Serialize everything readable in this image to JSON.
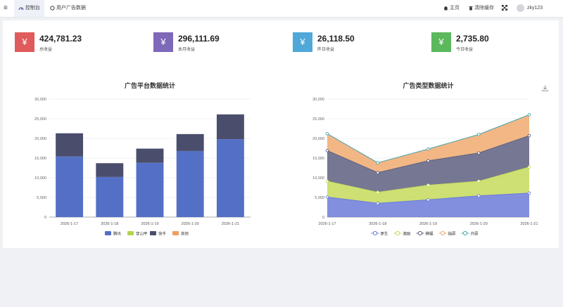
{
  "topbar": {
    "tabs": [
      {
        "icon": "dashboard-icon",
        "label": "控制台",
        "active": true
      },
      {
        "icon": "circle-icon",
        "label": "用户广告数据",
        "active": false
      }
    ],
    "right": {
      "home_label": "主页",
      "clear_cache_label": "清除缓存",
      "user_name": "zky123"
    }
  },
  "stats": [
    {
      "value": "424,781.23",
      "label": "总收益",
      "color": "#e05b5b",
      "icon": "¥"
    },
    {
      "value": "296,111.69",
      "label": "本月收益",
      "color": "#7e68b8",
      "icon": "¥"
    },
    {
      "value": "26,118.50",
      "label": "昨日收益",
      "color": "#4fa8d8",
      "icon": "¥"
    },
    {
      "value": "2,735.80",
      "label": "今日收益",
      "color": "#5cb85c",
      "icon": "¥"
    }
  ],
  "chart_data": [
    {
      "type": "bar",
      "stacked": true,
      "title": "广告平台数据统计",
      "categories": [
        "2026-1-17",
        "2026-1-18",
        "2026-1-19",
        "2026-1-20",
        "2026-1-21"
      ],
      "ylim": [
        0,
        30000
      ],
      "yticks": [
        "0",
        "5,000",
        "10,000",
        "15,000",
        "20,000",
        "25,000",
        "30,000"
      ],
      "legend_position": "bottom",
      "series": [
        {
          "name": "腾讯",
          "color": "#5470c6",
          "values": [
            15400,
            10200,
            13800,
            16800,
            19800
          ]
        },
        {
          "name": "穿山甲",
          "color": "#b5d24c",
          "values": [
            0,
            0,
            0,
            0,
            0
          ]
        },
        {
          "name": "快手",
          "color": "#4a4d6b",
          "values": [
            5900,
            3500,
            3600,
            4300,
            6300
          ]
        },
        {
          "name": "其他",
          "color": "#ee9f61",
          "values": [
            0,
            0,
            0,
            0,
            0
          ]
        }
      ]
    },
    {
      "type": "area",
      "stacked": true,
      "title": "广告类型数据统计",
      "categories": [
        "2026-1-17",
        "2026-1-18",
        "2026-1-19",
        "2026-1-20",
        "2026-1-21"
      ],
      "ylim": [
        0,
        30000
      ],
      "yticks": [
        "0",
        "5,000",
        "10,000",
        "15,000",
        "20,000",
        "25,000",
        "30,000"
      ],
      "legend_position": "bottom",
      "series": [
        {
          "name": "原生",
          "color": "#6c7bd9",
          "values": [
            5100,
            3500,
            4400,
            5400,
            6100
          ]
        },
        {
          "name": "激励",
          "color": "#c5da5a",
          "values": [
            4000,
            2800,
            3700,
            3700,
            6600
          ]
        },
        {
          "name": "横幅",
          "color": "#5e6080",
          "values": [
            7800,
            5000,
            6200,
            7200,
            8000
          ]
        },
        {
          "name": "插屏",
          "color": "#f0aa6e",
          "values": [
            4300,
            2500,
            3000,
            4700,
            5300
          ]
        },
        {
          "name": "开屏",
          "color": "#49a8b8",
          "values": [
            0,
            0,
            0,
            0,
            0
          ]
        }
      ]
    }
  ]
}
